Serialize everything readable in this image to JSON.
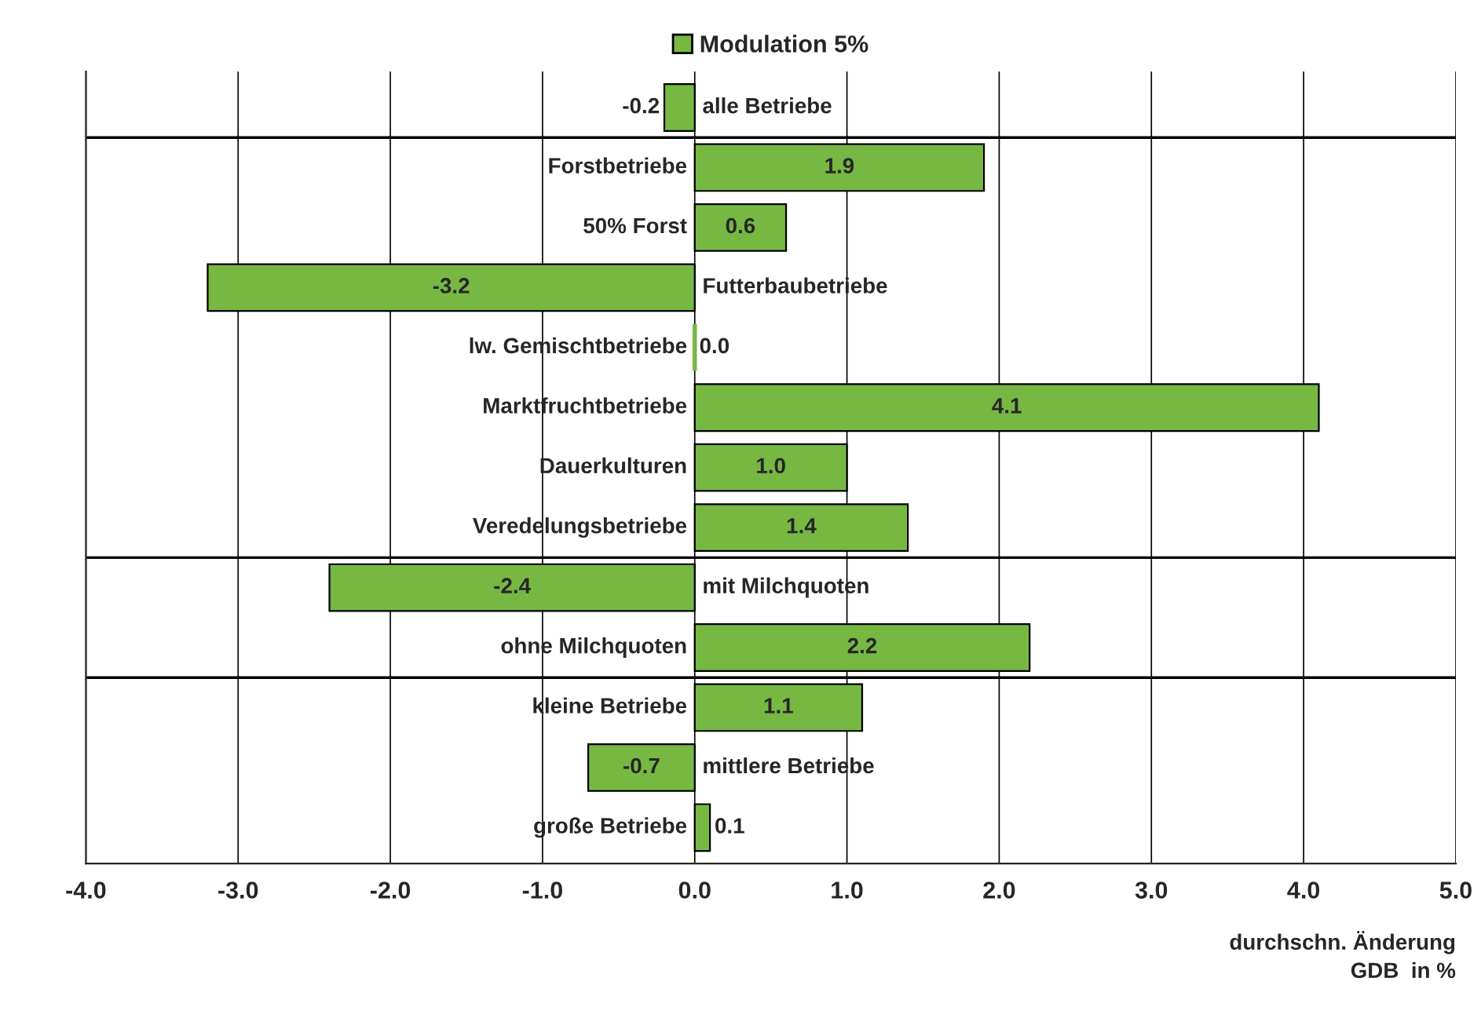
{
  "chart_data": {
    "type": "bar",
    "orientation": "horizontal",
    "categories": [
      "alle Betriebe",
      "Forstbetriebe",
      "50% Forst",
      "Futterbaubetriebe",
      "lw. Gemischtbetriebe",
      "Marktfruchtbetriebe",
      "Dauerkulturen",
      "Veredelungsbetriebe",
      "mit Milchquoten",
      "ohne Milchquoten",
      "kleine Betriebe",
      "mittlere Betriebe",
      "große Betriebe"
    ],
    "series": [
      {
        "name": "Modulation 5%",
        "color": "#77b843",
        "values": [
          -0.2,
          1.9,
          0.6,
          -3.2,
          0.0,
          4.1,
          1.0,
          1.4,
          -2.4,
          2.2,
          1.1,
          -0.7,
          0.1
        ]
      }
    ],
    "value_labels": [
      "-0.2",
      "1.9",
      "0.6",
      "-3.2",
      "0.0",
      "4.1",
      "1.0",
      "1.4",
      "-2.4",
      "2.2",
      "1.1",
      "-0.7",
      "0.1"
    ],
    "xlim": [
      -4,
      5
    ],
    "xticks": [
      {
        "value": -4,
        "label": "-4.0"
      },
      {
        "value": -3,
        "label": "-3.0"
      },
      {
        "value": -2,
        "label": "-2.0"
      },
      {
        "value": -1,
        "label": "-1.0"
      },
      {
        "value": 0,
        "label": "0.0"
      },
      {
        "value": 1,
        "label": "1.0"
      },
      {
        "value": 2,
        "label": "2.0"
      },
      {
        "value": 3,
        "label": "3.0"
      },
      {
        "value": 4,
        "label": "4.0"
      },
      {
        "value": 5,
        "label": "5.0"
      }
    ],
    "xlabel": "durchschn. Änderung\nGDB  in %",
    "grid": "x",
    "legend": "top"
  }
}
